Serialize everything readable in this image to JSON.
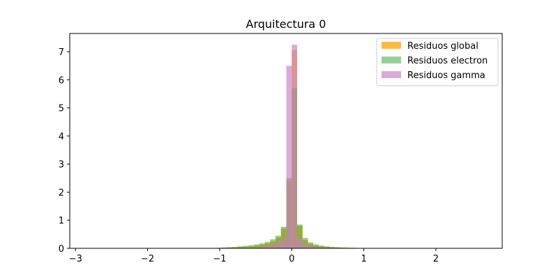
{
  "chart_data": {
    "type": "histogram",
    "title": "Arquitectura 0",
    "xlabel": "",
    "ylabel": "",
    "xlim": [
      -3.08,
      2.92
    ],
    "ylim": [
      0,
      7.65
    ],
    "x_ticks": [
      -3,
      -2,
      -1,
      0,
      1,
      2
    ],
    "x_tick_labels": [
      "−3",
      "−2",
      "−1",
      "0",
      "1",
      "2"
    ],
    "y_ticks": [
      0,
      1,
      2,
      3,
      4,
      5,
      6,
      7
    ],
    "y_tick_labels": [
      "0",
      "1",
      "2",
      "3",
      "4",
      "5",
      "6",
      "7"
    ],
    "grid": false,
    "legend_position": "top-right",
    "bin_width": 0.075,
    "series": [
      {
        "name": "Residuos global",
        "color": "#ffa500",
        "opacity": 0.75,
        "bins": [
          {
            "x0": -1.275,
            "x1": -1.2,
            "value": 0.01
          },
          {
            "x0": -1.05,
            "x1": -0.975,
            "value": 0.01
          },
          {
            "x0": -0.975,
            "x1": -0.9,
            "value": 0.02
          },
          {
            "x0": -0.9,
            "x1": -0.825,
            "value": 0.03
          },
          {
            "x0": -0.825,
            "x1": -0.75,
            "value": 0.04
          },
          {
            "x0": -0.75,
            "x1": -0.675,
            "value": 0.05
          },
          {
            "x0": -0.675,
            "x1": -0.6,
            "value": 0.06
          },
          {
            "x0": -0.6,
            "x1": -0.525,
            "value": 0.08
          },
          {
            "x0": -0.525,
            "x1": -0.45,
            "value": 0.1
          },
          {
            "x0": -0.45,
            "x1": -0.375,
            "value": 0.13
          },
          {
            "x0": -0.375,
            "x1": -0.3,
            "value": 0.17
          },
          {
            "x0": -0.3,
            "x1": -0.225,
            "value": 0.25
          },
          {
            "x0": -0.225,
            "x1": -0.15,
            "value": 0.38
          },
          {
            "x0": -0.15,
            "x1": -0.075,
            "value": 0.7
          },
          {
            "x0": -0.075,
            "x1": 0.0,
            "value": 2.4
          },
          {
            "x0": 0.0,
            "x1": 0.075,
            "value": 7.05
          },
          {
            "x0": 0.075,
            "x1": 0.15,
            "value": 0.8
          },
          {
            "x0": 0.15,
            "x1": 0.225,
            "value": 0.3
          },
          {
            "x0": 0.225,
            "x1": 0.3,
            "value": 0.16
          },
          {
            "x0": 0.3,
            "x1": 0.375,
            "value": 0.1
          },
          {
            "x0": 0.375,
            "x1": 0.45,
            "value": 0.07
          },
          {
            "x0": 0.45,
            "x1": 0.525,
            "value": 0.05
          },
          {
            "x0": 0.525,
            "x1": 0.6,
            "value": 0.04
          },
          {
            "x0": 0.6,
            "x1": 0.675,
            "value": 0.03
          },
          {
            "x0": 0.675,
            "x1": 0.75,
            "value": 0.02
          },
          {
            "x0": 0.75,
            "x1": 0.825,
            "value": 0.02
          },
          {
            "x0": 0.825,
            "x1": 0.9,
            "value": 0.01
          },
          {
            "x0": 0.9,
            "x1": 0.975,
            "value": 0.01
          },
          {
            "x0": 1.2,
            "x1": 1.275,
            "value": 0.01
          }
        ]
      },
      {
        "name": "Residuos electron",
        "color": "#2ca02c",
        "opacity": 0.5,
        "bins": [
          {
            "x0": -1.275,
            "x1": -1.2,
            "value": 0.01
          },
          {
            "x0": -1.05,
            "x1": -0.975,
            "value": 0.02
          },
          {
            "x0": -0.975,
            "x1": -0.9,
            "value": 0.03
          },
          {
            "x0": -0.9,
            "x1": -0.825,
            "value": 0.04
          },
          {
            "x0": -0.825,
            "x1": -0.75,
            "value": 0.05
          },
          {
            "x0": -0.75,
            "x1": -0.675,
            "value": 0.07
          },
          {
            "x0": -0.675,
            "x1": -0.6,
            "value": 0.09
          },
          {
            "x0": -0.6,
            "x1": -0.525,
            "value": 0.11
          },
          {
            "x0": -0.525,
            "x1": -0.45,
            "value": 0.14
          },
          {
            "x0": -0.45,
            "x1": -0.375,
            "value": 0.18
          },
          {
            "x0": -0.375,
            "x1": -0.3,
            "value": 0.23
          },
          {
            "x0": -0.3,
            "x1": -0.225,
            "value": 0.32
          },
          {
            "x0": -0.225,
            "x1": -0.15,
            "value": 0.45
          },
          {
            "x0": -0.15,
            "x1": -0.075,
            "value": 0.77
          },
          {
            "x0": -0.075,
            "x1": 0.0,
            "value": 2.5
          },
          {
            "x0": 0.0,
            "x1": 0.075,
            "value": 5.7
          },
          {
            "x0": 0.075,
            "x1": 0.15,
            "value": 0.85
          },
          {
            "x0": 0.15,
            "x1": 0.225,
            "value": 0.37
          },
          {
            "x0": 0.225,
            "x1": 0.3,
            "value": 0.21
          },
          {
            "x0": 0.3,
            "x1": 0.375,
            "value": 0.14
          },
          {
            "x0": 0.375,
            "x1": 0.45,
            "value": 0.1
          },
          {
            "x0": 0.45,
            "x1": 0.525,
            "value": 0.07
          },
          {
            "x0": 0.525,
            "x1": 0.6,
            "value": 0.05
          },
          {
            "x0": 0.6,
            "x1": 0.675,
            "value": 0.04
          },
          {
            "x0": 0.675,
            "x1": 0.75,
            "value": 0.03
          },
          {
            "x0": 0.75,
            "x1": 0.825,
            "value": 0.02
          },
          {
            "x0": 0.825,
            "x1": 0.9,
            "value": 0.02
          },
          {
            "x0": 0.9,
            "x1": 0.975,
            "value": 0.01
          },
          {
            "x0": 1.2,
            "x1": 1.275,
            "value": 0.01
          }
        ]
      },
      {
        "name": "Residuos gamma",
        "color": "#c77cc4",
        "opacity": 0.65,
        "bins": [
          {
            "x0": -0.6,
            "x1": -0.525,
            "value": 0.02
          },
          {
            "x0": -0.525,
            "x1": -0.45,
            "value": 0.03
          },
          {
            "x0": -0.45,
            "x1": -0.375,
            "value": 0.05
          },
          {
            "x0": -0.375,
            "x1": -0.3,
            "value": 0.08
          },
          {
            "x0": -0.3,
            "x1": -0.225,
            "value": 0.12
          },
          {
            "x0": -0.225,
            "x1": -0.15,
            "value": 0.2
          },
          {
            "x0": -0.15,
            "x1": -0.075,
            "value": 0.35
          },
          {
            "x0": -0.075,
            "x1": 0.0,
            "value": 6.5
          },
          {
            "x0": 0.0,
            "x1": 0.075,
            "value": 7.25
          },
          {
            "x0": 0.075,
            "x1": 0.15,
            "value": 0.35
          },
          {
            "x0": 0.15,
            "x1": 0.225,
            "value": 0.15
          },
          {
            "x0": 0.225,
            "x1": 0.3,
            "value": 0.08
          },
          {
            "x0": 0.3,
            "x1": 0.375,
            "value": 0.05
          },
          {
            "x0": 0.375,
            "x1": 0.45,
            "value": 0.03
          },
          {
            "x0": 0.45,
            "x1": 0.525,
            "value": 0.02
          }
        ]
      }
    ]
  }
}
